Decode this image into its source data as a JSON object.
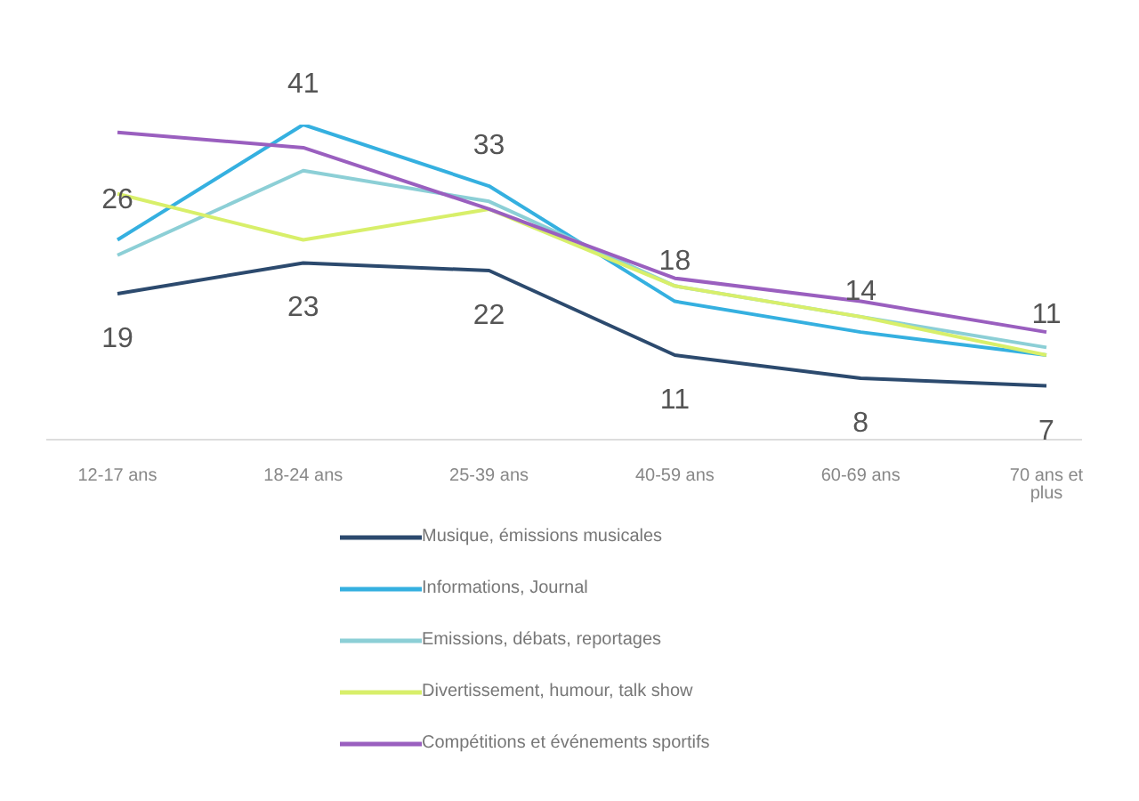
{
  "chart_data": {
    "type": "line",
    "categories": [
      "12-17 ans",
      "18-24 ans",
      "25-39 ans",
      "40-59 ans",
      "60-69 ans",
      "70 ans et plus"
    ],
    "series": [
      {
        "name": "Musique, émissions musicales",
        "color": "#2c4a6e",
        "values": [
          19,
          23,
          22,
          11,
          8,
          7
        ],
        "value_labels": [
          "19",
          "23",
          "22",
          "11",
          "8",
          "7"
        ]
      },
      {
        "name": "Informations, Journal",
        "color": "#35b0e0",
        "values": [
          26,
          41,
          33,
          18,
          14,
          11
        ],
        "value_labels": [
          "26",
          "41",
          "33",
          "18",
          "14",
          "11"
        ]
      },
      {
        "name": "Emissions, débats, reportages",
        "color": "#8ccfd6",
        "values": [
          24,
          35,
          31,
          20,
          16,
          12
        ]
      },
      {
        "name": "Divertissement, humour, talk show",
        "color": "#d8ef6a",
        "values": [
          32,
          26,
          30,
          20,
          16,
          11
        ]
      },
      {
        "name": "Compétitions et événements sportifs",
        "color": "#9a5fbf",
        "values": [
          40,
          38,
          30,
          21,
          18,
          14
        ]
      }
    ],
    "tick_labels": "x",
    "grid": false,
    "legend": "bottom",
    "marker": "none",
    "line_style": "solid"
  }
}
